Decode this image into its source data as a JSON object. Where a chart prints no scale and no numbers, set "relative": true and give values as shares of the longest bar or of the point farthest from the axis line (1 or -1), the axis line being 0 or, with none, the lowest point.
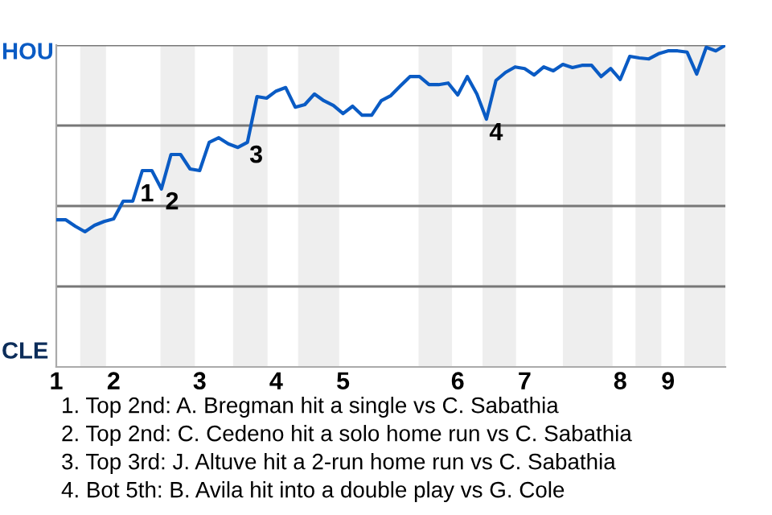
{
  "chart_data": {
    "type": "line",
    "relative": true,
    "categories": [
      "1",
      null,
      null,
      null,
      null,
      null,
      "2",
      null,
      null,
      null,
      null,
      null,
      null,
      null,
      null,
      "3",
      null,
      null,
      null,
      null,
      null,
      null,
      null,
      "4",
      null,
      null,
      null,
      null,
      null,
      null,
      "5",
      null,
      null,
      null,
      null,
      null,
      null,
      null,
      null,
      null,
      null,
      null,
      "6",
      null,
      null,
      null,
      null,
      null,
      null,
      "7",
      null,
      null,
      null,
      null,
      null,
      null,
      null,
      null,
      null,
      "8",
      null,
      null,
      null,
      null,
      "9",
      null,
      null,
      null,
      null,
      null,
      null
    ],
    "series": [
      {
        "color": "#0a5bc4",
        "values": [
          0.457,
          0.457,
          0.437,
          0.42,
          0.44,
          0.452,
          0.46,
          0.515,
          0.515,
          0.61,
          0.61,
          0.553,
          0.66,
          0.66,
          0.615,
          0.61,
          0.698,
          0.712,
          0.693,
          0.682,
          0.698,
          0.84,
          0.835,
          0.857,
          0.868,
          0.807,
          0.815,
          0.848,
          0.827,
          0.812,
          0.787,
          0.81,
          0.782,
          0.782,
          0.827,
          0.843,
          0.873,
          0.902,
          0.902,
          0.877,
          0.877,
          0.882,
          0.845,
          0.902,
          0.848,
          0.77,
          0.89,
          0.915,
          0.932,
          0.927,
          0.907,
          0.932,
          0.92,
          0.94,
          0.93,
          0.937,
          0.937,
          0.902,
          0.927,
          0.893,
          0.965,
          0.96,
          0.957,
          0.973,
          0.982,
          0.982,
          0.978,
          0.91,
          0.993,
          0.982,
          1
        ]
      }
    ],
    "grid": "y",
    "legend": false,
    "annotations": [
      "1",
      "2",
      "3",
      "4",
      "HOU",
      "CLE",
      "1. Top 2nd: A. Bregman hit a single vs C. Sabathia",
      "2. Top 2nd: C. Cedeno hit a solo home run vs C. Sabathia",
      "3. Top 3rd: J. Altuve hit a 2-run home run vs C. Sabathia",
      "4. Bot 5th: B. Avila hit into a double play vs G. Cole"
    ]
  }
}
